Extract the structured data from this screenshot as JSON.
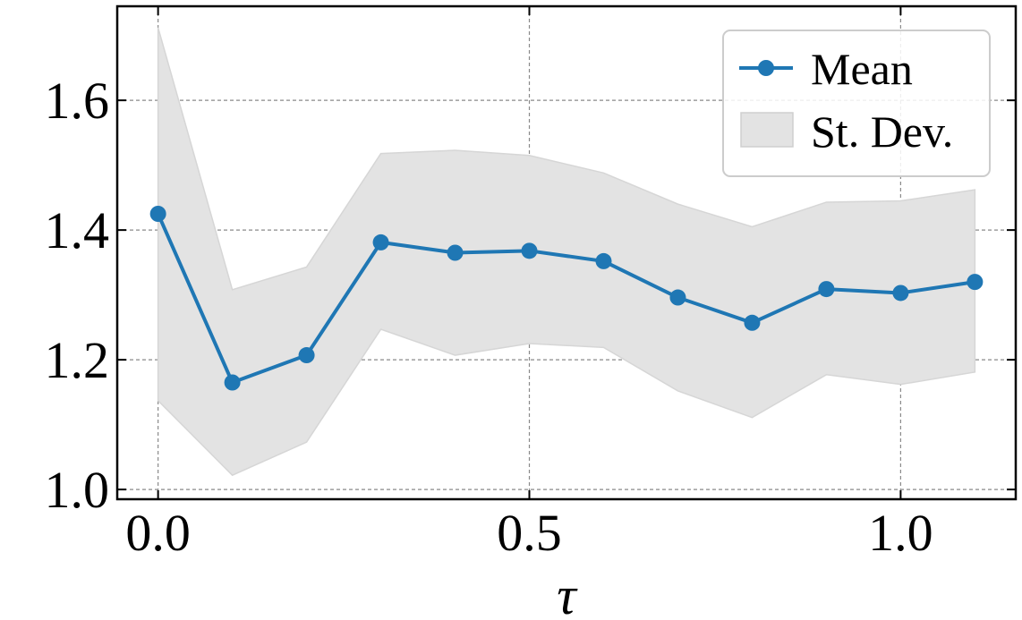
{
  "chart_data": {
    "type": "line",
    "title": "",
    "xlabel": "τ",
    "ylabel": "",
    "xlim": [
      -0.055,
      1.155
    ],
    "ylim": [
      0.985,
      1.745
    ],
    "xticks": [
      0.0,
      0.5,
      1.0
    ],
    "xtick_labels": [
      "0.0",
      "0.5",
      "1.0"
    ],
    "yticks": [
      1.0,
      1.2,
      1.4,
      1.6
    ],
    "ytick_labels": [
      "1.0",
      "1.2",
      "1.4",
      "1.6"
    ],
    "grid": true,
    "legend_position": "top-right",
    "x": [
      0.0,
      0.1,
      0.2,
      0.3,
      0.4,
      0.5,
      0.6,
      0.7,
      0.8,
      0.9,
      1.0,
      1.1
    ],
    "series": [
      {
        "name": "Mean",
        "kind": "line-marker",
        "color": "#1f77b4",
        "values": [
          1.425,
          1.165,
          1.207,
          1.381,
          1.365,
          1.368,
          1.352,
          1.296,
          1.257,
          1.309,
          1.303,
          1.32
        ]
      },
      {
        "name": "St. Dev.",
        "kind": "band",
        "color": "#e3e3e3",
        "upper": [
          1.712,
          1.308,
          1.343,
          1.518,
          1.523,
          1.515,
          1.488,
          1.44,
          1.405,
          1.443,
          1.445,
          1.462
        ],
        "lower": [
          1.137,
          1.022,
          1.073,
          1.247,
          1.207,
          1.225,
          1.219,
          1.152,
          1.111,
          1.177,
          1.162,
          1.181
        ]
      }
    ]
  }
}
